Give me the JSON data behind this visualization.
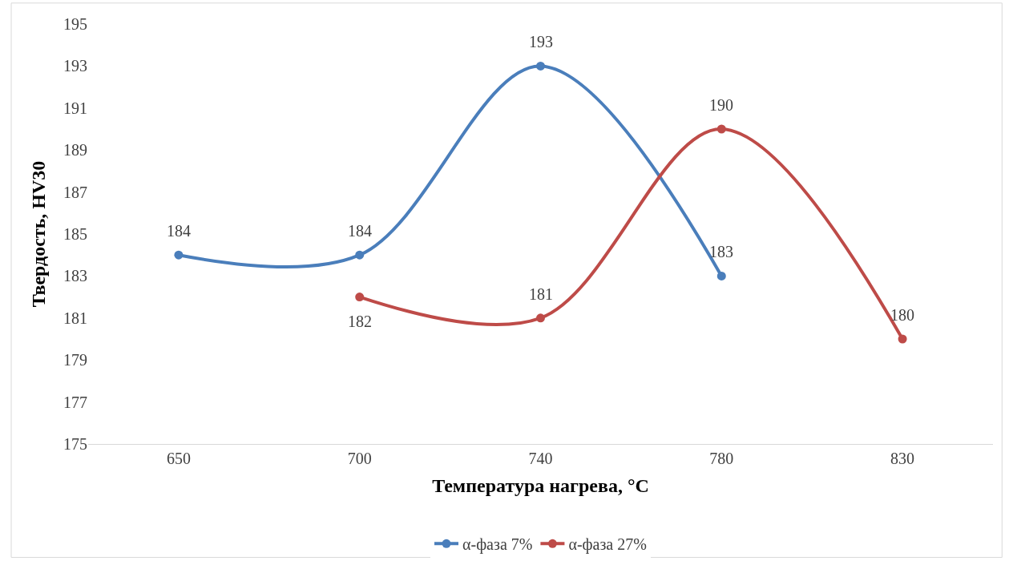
{
  "chart_data": {
    "type": "line",
    "xlabel": "Температура нагрева, °C",
    "ylabel": "Твердость, HV30",
    "categories": [
      "650",
      "700",
      "740",
      "780",
      "830"
    ],
    "series": [
      {
        "name": "α-фаза 7%",
        "color": "#4a7ebb",
        "values": [
          184,
          184,
          193,
          183,
          null
        ]
      },
      {
        "name": "α-фаза 27%",
        "color": "#be4b48",
        "values": [
          null,
          182,
          181,
          190,
          180
        ]
      }
    ],
    "ylim": [
      175,
      195
    ],
    "yticks": [
      175,
      177,
      179,
      181,
      183,
      185,
      187,
      189,
      191,
      193,
      195
    ],
    "legend": "bottom",
    "marker": "circle",
    "line_style": "solid",
    "data_labels": true
  }
}
